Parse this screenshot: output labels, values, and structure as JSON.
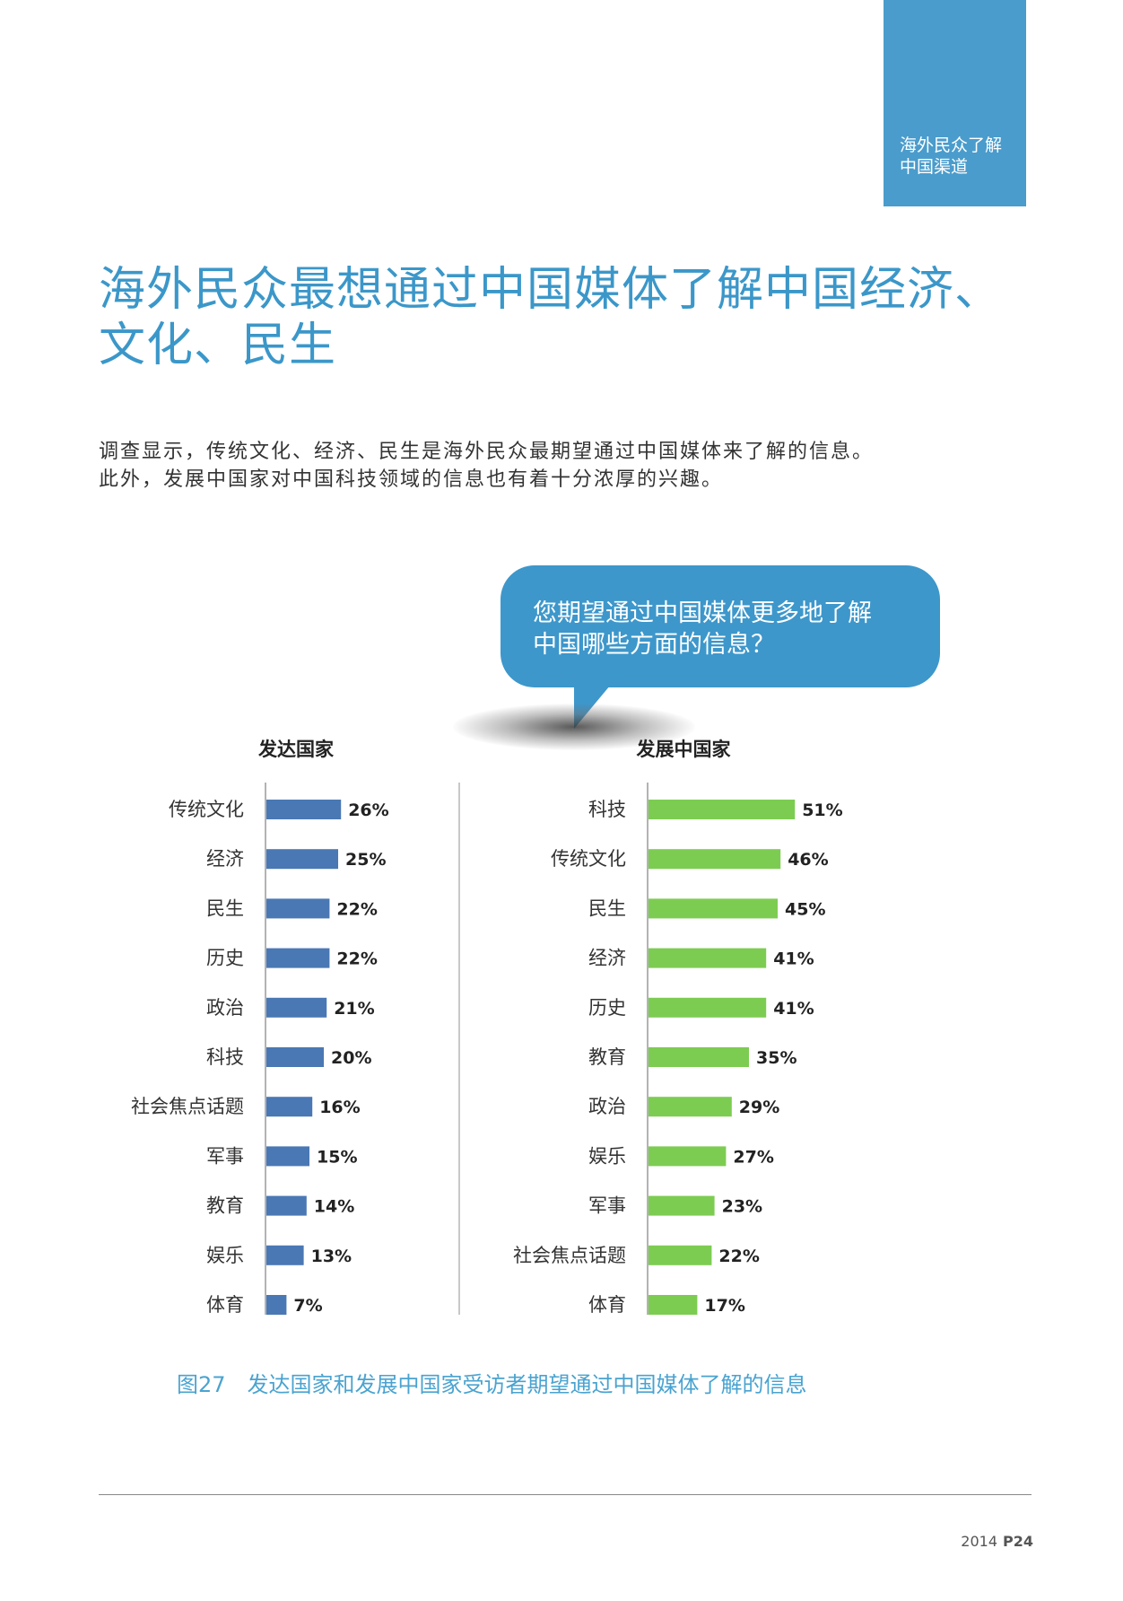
{
  "section_tab": {
    "line1": "海外民众了解",
    "line2": "中国渠道"
  },
  "title": "海外民众最想通过中国媒体了解中国经济、文化、民生",
  "intro": {
    "line1": "调查显示，传统文化、经济、民生是海外民众最期望通过中国媒体来了解的信息。",
    "line2": "此外，发展中国家对中国科技领域的信息也有着十分浓厚的兴趣。"
  },
  "bubble": {
    "line1": "您期望通过中国媒体更多地了解",
    "line2": "中国哪些方面的信息？"
  },
  "colors": {
    "developed": "#4a78b4",
    "developing": "#7dcc52",
    "accent": "#3d97cb"
  },
  "chart_data": [
    {
      "type": "bar",
      "orientation": "horizontal",
      "title": "发达国家",
      "categories": [
        "传统文化",
        "经济",
        "民生",
        "历史",
        "政治",
        "科技",
        "社会焦点话题",
        "军事",
        "教育",
        "娱乐",
        "体育"
      ],
      "values": [
        26,
        25,
        22,
        22,
        21,
        20,
        16,
        15,
        14,
        13,
        7
      ],
      "value_suffix": "%",
      "color": "#4a78b4"
    },
    {
      "type": "bar",
      "orientation": "horizontal",
      "title": "发展中国家",
      "categories": [
        "科技",
        "传统文化",
        "民生",
        "经济",
        "历史",
        "教育",
        "政治",
        "娱乐",
        "军事",
        "社会焦点话题",
        "体育"
      ],
      "values": [
        51,
        46,
        45,
        41,
        41,
        35,
        29,
        27,
        23,
        22,
        17
      ],
      "value_suffix": "%",
      "color": "#7dcc52"
    }
  ],
  "caption": "图27　发达国家和发展中国家受访者期望通过中国媒体了解的信息",
  "footer": {
    "year": "2014",
    "page": "P24"
  }
}
